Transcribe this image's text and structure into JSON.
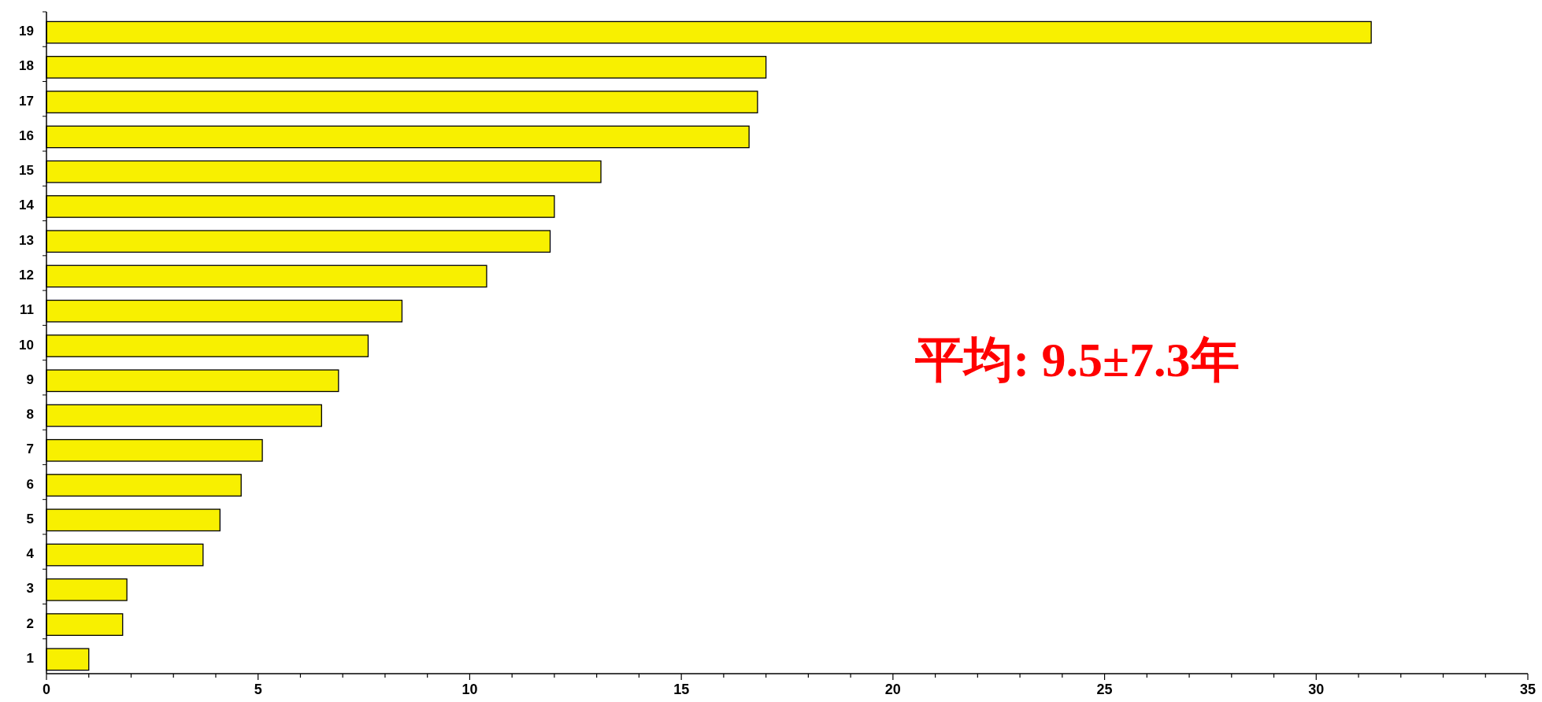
{
  "chart_data": {
    "type": "bar",
    "orientation": "horizontal",
    "categories": [
      "19",
      "18",
      "17",
      "16",
      "15",
      "14",
      "13",
      "12",
      "11",
      "10",
      "9",
      "8",
      "7",
      "6",
      "5",
      "4",
      "3",
      "2",
      "1"
    ],
    "values": [
      31.3,
      17.0,
      16.8,
      16.6,
      13.1,
      12.0,
      11.9,
      10.4,
      8.4,
      7.6,
      6.9,
      6.5,
      5.1,
      4.6,
      4.1,
      3.7,
      1.9,
      1.8,
      1.0
    ],
    "color": "#f8f000",
    "xlim": [
      0,
      35
    ],
    "xticks": [
      0,
      {
        "value": 1,
        "label": null
      },
      {
        "value": 2,
        "label": null
      },
      {
        "value": 3,
        "label": null
      },
      {
        "value": 4,
        "label": null
      },
      5,
      {
        "value": 6,
        "label": null
      },
      {
        "value": 7,
        "label": null
      },
      {
        "value": 8,
        "label": null
      },
      {
        "value": 9,
        "label": null
      },
      10,
      {
        "value": 11,
        "label": null
      },
      {
        "value": 12,
        "label": null
      },
      {
        "value": 13,
        "label": null
      },
      {
        "value": 14,
        "label": null
      },
      15,
      {
        "value": 16,
        "label": null
      },
      {
        "value": 17,
        "label": null
      },
      {
        "value": 18,
        "label": null
      },
      {
        "value": 19,
        "label": null
      },
      20,
      {
        "value": 21,
        "label": null
      },
      {
        "value": 22,
        "label": null
      },
      {
        "value": 23,
        "label": null
      },
      {
        "value": 24,
        "label": null
      },
      25,
      {
        "value": 26,
        "label": null
      },
      {
        "value": 27,
        "label": null
      },
      {
        "value": 28,
        "label": null
      },
      {
        "value": 29,
        "label": null
      },
      30,
      {
        "value": 31,
        "label": null
      },
      {
        "value": 32,
        "label": null
      },
      {
        "value": 33,
        "label": null
      },
      {
        "value": 34,
        "label": null
      },
      35
    ],
    "grid": false,
    "annotations": [
      "平均: 9.5±7.3年"
    ]
  }
}
